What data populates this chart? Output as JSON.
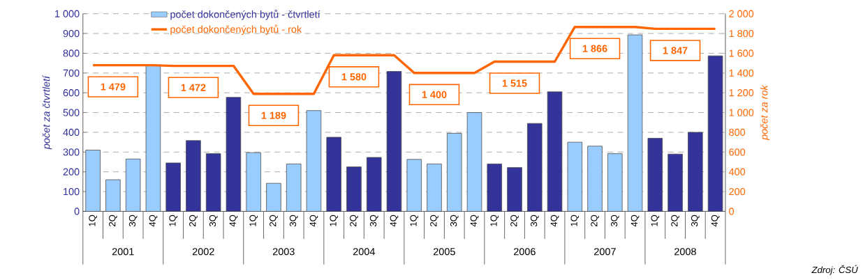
{
  "chart_data": {
    "type": "bar",
    "categories": [
      "1Q",
      "2Q",
      "3Q",
      "4Q",
      "1Q",
      "2Q",
      "3Q",
      "4Q",
      "1Q",
      "2Q",
      "3Q",
      "4Q",
      "1Q",
      "2Q",
      "3Q",
      "4Q",
      "1Q",
      "2Q",
      "3Q",
      "4Q",
      "1Q",
      "2Q",
      "3Q",
      "4Q",
      "1Q",
      "2Q",
      "3Q",
      "4Q",
      "1Q",
      "2Q",
      "3Q",
      "4Q"
    ],
    "series": [
      {
        "name": "počet dokončených bytů - čtvrtletí",
        "color": "#99ccff",
        "colors": [
          "#99ccff",
          "#99ccff",
          "#99ccff",
          "#99ccff",
          "#333399",
          "#333399",
          "#333399",
          "#333399",
          "#99ccff",
          "#99ccff",
          "#99ccff",
          "#99ccff",
          "#333399",
          "#333399",
          "#333399",
          "#333399",
          "#99ccff",
          "#99ccff",
          "#99ccff",
          "#99ccff",
          "#333399",
          "#333399",
          "#333399",
          "#333399",
          "#99ccff",
          "#99ccff",
          "#99ccff",
          "#99ccff",
          "#333399",
          "#333399",
          "#333399",
          "#333399"
        ],
        "values": [
          310,
          160,
          265,
          740,
          245,
          358,
          292,
          577,
          297,
          142,
          240,
          510,
          375,
          225,
          273,
          708,
          263,
          240,
          395,
          500,
          240,
          222,
          445,
          605,
          350,
          330,
          292,
          893,
          370,
          290,
          400,
          787
        ]
      },
      {
        "name": "počet dokončených bytů - rok",
        "type": "line",
        "axis": "y2",
        "color": "#ff6600",
        "values": [
          1479,
          1479,
          1479,
          1479,
          1472,
          1472,
          1472,
          1472,
          1189,
          1189,
          1189,
          1189,
          1580,
          1580,
          1580,
          1580,
          1400,
          1400,
          1400,
          1400,
          1515,
          1515,
          1515,
          1515,
          1866,
          1866,
          1866,
          1866,
          1847,
          1847,
          1847,
          1847
        ],
        "value_labels": [
          null,
          "1 479",
          null,
          null,
          null,
          "1 472",
          null,
          null,
          null,
          "1 189",
          null,
          null,
          null,
          "1 580",
          null,
          null,
          null,
          "1 400",
          null,
          null,
          null,
          "1 515",
          null,
          null,
          null,
          "1 866",
          null,
          null,
          null,
          "1 847",
          null,
          null
        ]
      }
    ],
    "ylabel": "počet za čtvrtletí",
    "y2label": "počet za rok",
    "ylim": [
      0,
      1000
    ],
    "yticks": [
      0,
      100,
      200,
      300,
      400,
      500,
      600,
      700,
      800,
      900,
      {
        "value": 1000,
        "label": "1 000"
      }
    ],
    "y2lim": [
      0,
      2000
    ],
    "y2ticks": [
      0,
      200,
      400,
      600,
      800,
      {
        "value": 1000,
        "label": "1 000"
      },
      {
        "value": 1200,
        "label": "1 200"
      },
      {
        "value": 1400,
        "label": "1 400"
      },
      {
        "value": 1600,
        "label": "1 600"
      },
      {
        "value": 1800,
        "label": "1 800"
      },
      {
        "value": 2000,
        "label": "2 000"
      }
    ],
    "grid": "y",
    "legend": "top left",
    "annotations": [
      "2001",
      "2002",
      "2003",
      "2004",
      "2005",
      "2006",
      "2007",
      "2008",
      "Zdroj: ČSÚ"
    ]
  }
}
